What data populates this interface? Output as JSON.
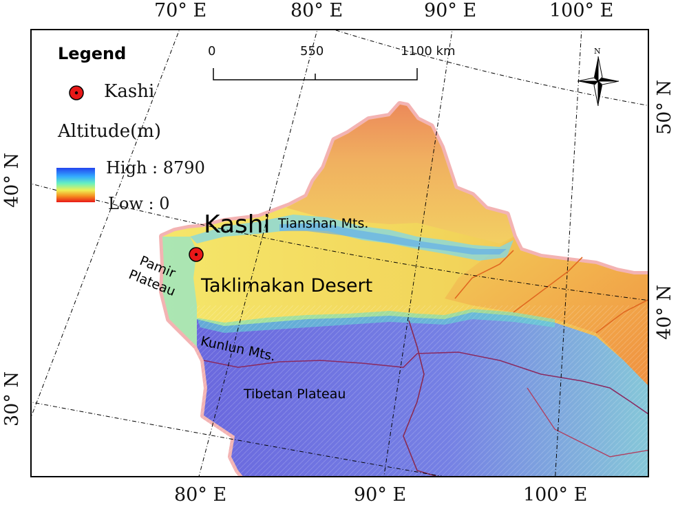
{
  "legend": {
    "title": "Legend",
    "city_label": "Kashi",
    "altitude_title": "Altitude(m)",
    "high_label": "High : 8790",
    "low_label": "Low : 0"
  },
  "scale_bar": {
    "values": [
      "0",
      "550",
      "1100 km"
    ]
  },
  "north_arrow": {
    "label": "N"
  },
  "ticks": {
    "top": [
      "70° E",
      "80° E",
      "90° E",
      "100° E"
    ],
    "bottom": [
      "80° E",
      "90° E",
      "100° E"
    ],
    "left": [
      "40° N",
      "30° N"
    ],
    "right": [
      "50° N",
      "40° N"
    ]
  },
  "map_labels": {
    "city": "Kashi",
    "tianshan": "Tianshan Mts.",
    "pamir_line1": "Pamir",
    "pamir_line2": "Plateau",
    "taklimakan": "Taklimakan Desert",
    "kunlun": "Kunlun  Mts.",
    "tibetan": "Tibetan Plateau"
  },
  "colors": {
    "high": "#2244ee",
    "low": "#e81818",
    "desert": "#f2d85a",
    "plateau": "#6d6ce0",
    "border": "#f2b0b0",
    "city_marker": "#e81818"
  }
}
